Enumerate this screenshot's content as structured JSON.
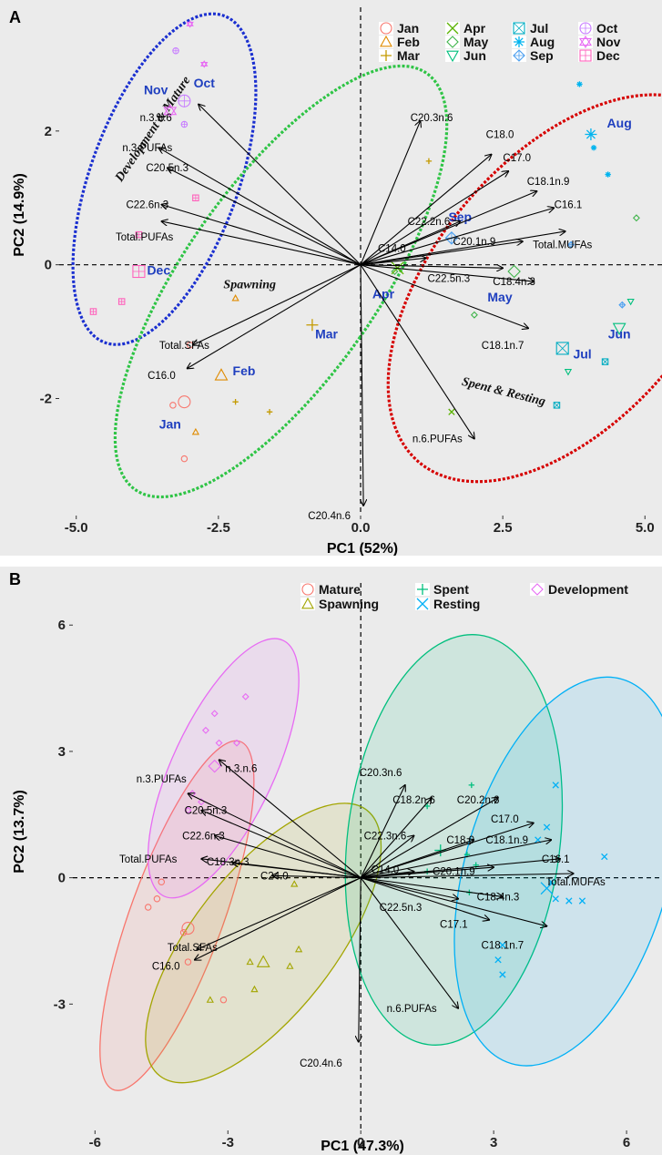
{
  "chart_data": [
    {
      "panel": "A",
      "type": "scatter",
      "xlabel": "PC1 (52%)",
      "ylabel": "PC2 (14.9%)",
      "xlim": [
        -5.3,
        5.3
      ],
      "ylim": [
        -3.75,
        3.85
      ],
      "xticks": [
        -5.0,
        -2.5,
        0.0,
        2.5,
        5.0
      ],
      "xtick_labels": [
        "-5.0",
        "-2.5",
        "0.0",
        "2.5",
        "5.0"
      ],
      "yticks": [
        -2,
        0,
        2
      ],
      "ytick_labels": [
        "-2",
        "0",
        "2"
      ],
      "grid": false,
      "background": "#ebebeb",
      "legend_position": "top-right",
      "legend": [
        {
          "name": "Jan",
          "color": "#f8766d"
        },
        {
          "name": "Feb",
          "color": "#e08b00"
        },
        {
          "name": "Mar",
          "color": "#c49a00"
        },
        {
          "name": "Apr",
          "color": "#5bb300"
        },
        {
          "name": "May",
          "color": "#3fb44a"
        },
        {
          "name": "Jun",
          "color": "#00bf7d"
        },
        {
          "name": "Jul",
          "color": "#00acc1"
        },
        {
          "name": "Aug",
          "color": "#00b4ef"
        },
        {
          "name": "Sep",
          "color": "#4b9ff0"
        },
        {
          "name": "Oct",
          "color": "#c77cff"
        },
        {
          "name": "Nov",
          "color": "#e76bf3"
        },
        {
          "name": "Dec",
          "color": "#ff62bc"
        }
      ],
      "points": [
        {
          "month": "Jan",
          "x": -3.0,
          "y": -1.2
        },
        {
          "month": "Jan",
          "x": -3.3,
          "y": -2.1
        },
        {
          "month": "Jan",
          "x": -3.1,
          "y": -2.9
        },
        {
          "month": "Feb",
          "x": -2.2,
          "y": -0.5
        },
        {
          "month": "Feb",
          "x": -2.9,
          "y": -2.5
        },
        {
          "month": "Mar",
          "x": -2.2,
          "y": -2.05
        },
        {
          "month": "Mar",
          "x": -1.6,
          "y": -2.2
        },
        {
          "month": "Mar",
          "x": 1.2,
          "y": 1.55
        },
        {
          "month": "Apr",
          "x": 1.6,
          "y": -2.2
        },
        {
          "month": "May",
          "x": 0.6,
          "y": -0.1
        },
        {
          "month": "May",
          "x": 2.0,
          "y": -0.75
        },
        {
          "month": "May",
          "x": 4.85,
          "y": 0.7
        },
        {
          "month": "Jun",
          "x": 3.65,
          "y": -1.6
        },
        {
          "month": "Jun",
          "x": 4.75,
          "y": -0.55
        },
        {
          "month": "Jul",
          "x": 3.45,
          "y": -2.1
        },
        {
          "month": "Jul",
          "x": 4.3,
          "y": -1.45
        },
        {
          "month": "Aug",
          "x": 3.85,
          "y": 2.7
        },
        {
          "month": "Aug",
          "x": 4.1,
          "y": 1.75
        },
        {
          "month": "Aug",
          "x": 4.35,
          "y": 1.35
        },
        {
          "month": "Sep",
          "x": 4.6,
          "y": -0.6
        },
        {
          "month": "Sep",
          "x": 3.7,
          "y": 0.3
        },
        {
          "month": "Oct",
          "x": -3.25,
          "y": 3.2
        },
        {
          "month": "Oct",
          "x": -3.1,
          "y": 2.1
        },
        {
          "month": "Nov",
          "x": -3.0,
          "y": 3.6
        },
        {
          "month": "Nov",
          "x": -2.75,
          "y": 3.0
        },
        {
          "month": "Dec",
          "x": -2.9,
          "y": 1.0
        },
        {
          "month": "Dec",
          "x": -3.9,
          "y": 0.45
        },
        {
          "month": "Dec",
          "x": -4.2,
          "y": -0.55
        },
        {
          "month": "Dec",
          "x": -4.7,
          "y": -0.7
        }
      ],
      "centroids": [
        {
          "month": "Jan",
          "x": -3.1,
          "y": -2.05
        },
        {
          "month": "Feb",
          "x": -2.45,
          "y": -1.65
        },
        {
          "month": "Mar",
          "x": -0.85,
          "y": -0.9
        },
        {
          "month": "Apr",
          "x": 0.65,
          "y": -0.05
        },
        {
          "month": "May",
          "x": 2.7,
          "y": -0.1
        },
        {
          "month": "Jun",
          "x": 4.55,
          "y": -0.95
        },
        {
          "month": "Jul",
          "x": 3.55,
          "y": -1.25
        },
        {
          "month": "Aug",
          "x": 4.05,
          "y": 1.95
        },
        {
          "month": "Sep",
          "x": 1.6,
          "y": 0.4
        },
        {
          "month": "Oct",
          "x": -3.1,
          "y": 2.45
        },
        {
          "month": "Nov",
          "x": -3.35,
          "y": 2.3
        },
        {
          "month": "Dec",
          "x": -3.9,
          "y": -0.1
        }
      ],
      "centroid_labels": [
        {
          "text": "Jan",
          "x": -3.35,
          "y": -2.45
        },
        {
          "text": "Feb",
          "x": -2.05,
          "y": -1.65
        },
        {
          "text": "Mar",
          "x": -0.6,
          "y": -1.1
        },
        {
          "text": "Apr",
          "x": 0.4,
          "y": -0.5
        },
        {
          "text": "May",
          "x": 2.45,
          "y": -0.55
        },
        {
          "text": "Jun",
          "x": 4.55,
          "y": -1.1
        },
        {
          "text": "Jul",
          "x": 3.9,
          "y": -1.4
        },
        {
          "text": "Aug",
          "x": 4.55,
          "y": 2.05
        },
        {
          "text": "Sep",
          "x": 1.75,
          "y": 0.65
        },
        {
          "text": "Oct",
          "x": -2.75,
          "y": 2.65
        },
        {
          "text": "Nov",
          "x": -3.6,
          "y": 2.55
        },
        {
          "text": "Dec",
          "x": -3.55,
          "y": -0.15
        }
      ],
      "loadings": [
        {
          "name": "n.3.n.6",
          "x": -2.85,
          "y": 2.4,
          "lx": -3.6,
          "ly": 2.2
        },
        {
          "name": "n.3.PUFAs",
          "x": -3.55,
          "y": 1.75,
          "lx": -3.75,
          "ly": 1.75
        },
        {
          "name": "C20.5n.3",
          "x": -3.4,
          "y": 1.45,
          "lx": -3.4,
          "ly": 1.45
        },
        {
          "name": "C22.6n.3",
          "x": -3.5,
          "y": 0.9,
          "lx": -3.75,
          "ly": 0.9
        },
        {
          "name": "Total.PUFAs",
          "x": -3.5,
          "y": 0.65,
          "lx": -3.8,
          "ly": 0.42
        },
        {
          "name": "Total.SFAs",
          "x": -2.95,
          "y": -1.2,
          "lx": -3.1,
          "ly": -1.2
        },
        {
          "name": "C16.0",
          "x": -3.05,
          "y": -1.55,
          "lx": -3.5,
          "ly": -1.65
        },
        {
          "name": "C20.3n.6",
          "x": 1.05,
          "y": 2.15,
          "lx": 1.25,
          "ly": 2.2
        },
        {
          "name": "C18.0",
          "x": 2.3,
          "y": 1.65,
          "lx": 2.45,
          "ly": 1.95
        },
        {
          "name": "C17.0",
          "x": 2.6,
          "y": 1.4,
          "lx": 2.75,
          "ly": 1.6
        },
        {
          "name": "C18.1n.9",
          "x": 3.1,
          "y": 1.1,
          "lx": 3.3,
          "ly": 1.25
        },
        {
          "name": "C16.1",
          "x": 3.4,
          "y": 0.85,
          "lx": 3.65,
          "ly": 0.9
        },
        {
          "name": "C22.2n.6",
          "x": 1.75,
          "y": 0.65,
          "lx": 1.2,
          "ly": 0.65
        },
        {
          "name": "Total.MUFAs",
          "x": 3.6,
          "y": 0.5,
          "lx": 3.55,
          "ly": 0.3
        },
        {
          "name": "C20.1n.9",
          "x": 2.85,
          "y": 0.35,
          "lx": 2.0,
          "ly": 0.35
        },
        {
          "name": "C14.0",
          "x": 1.15,
          "y": 0.1,
          "lx": 0.55,
          "ly": 0.25
        },
        {
          "name": "C22.5n.3",
          "x": 2.5,
          "y": -0.05,
          "lx": 1.55,
          "ly": -0.2
        },
        {
          "name": "C18.4n.3",
          "x": 3.05,
          "y": -0.25,
          "lx": 2.7,
          "ly": -0.25
        },
        {
          "name": "C18.1n.7",
          "x": 2.95,
          "y": -0.95,
          "lx": 2.5,
          "ly": -1.2
        },
        {
          "name": "n.6.PUFAs",
          "x": 2.0,
          "y": -2.6,
          "lx": 1.35,
          "ly": -2.6
        },
        {
          "name": "C20.4n.6",
          "x": 0.05,
          "y": -3.6,
          "lx": -0.55,
          "ly": -3.75
        }
      ],
      "groups": [
        {
          "name": "Development & Mature",
          "color": "#1a2fd0",
          "cx": -3.45,
          "cy": 1.28,
          "rx": 1.3,
          "ry": 2.6,
          "angle_deg": 20,
          "label_x": -3.6,
          "label_y": 2.0,
          "label_angle": -56
        },
        {
          "name": "Spawning",
          "color": "#2ec445",
          "cx": -1.4,
          "cy": -0.25,
          "rx": 1.7,
          "ry": 3.8,
          "angle_deg": 35,
          "label_x": -1.95,
          "label_y": -0.35,
          "label_angle": 0
        },
        {
          "name": "Spent & Resting",
          "color": "#d60000",
          "cx": 3.6,
          "cy": -0.35,
          "rx": 2.3,
          "ry": 3.4,
          "angle_deg": 40,
          "label_x": 2.5,
          "label_y": -1.95,
          "label_angle": 14
        }
      ]
    },
    {
      "panel": "B",
      "type": "scatter",
      "xlabel": "PC1 (47.3%)",
      "ylabel": "PC2 (13.7%)",
      "xlim": [
        -6.5,
        6.8
      ],
      "ylim": [
        -6.0,
        7.0
      ],
      "xticks": [
        -6,
        -3,
        0,
        3,
        6
      ],
      "xtick_labels": [
        "-6",
        "-3",
        "0",
        "3",
        "6"
      ],
      "yticks": [
        -3,
        0,
        3,
        6
      ],
      "ytick_labels": [
        "-3",
        "0",
        "3",
        "6"
      ],
      "grid": false,
      "background": "#ebebeb",
      "legend_position": "top-right",
      "legend": [
        {
          "name": "Mature",
          "color": "#f8766d"
        },
        {
          "name": "Spawning",
          "color": "#a3a500"
        },
        {
          "name": "Spent",
          "color": "#00bf7d"
        },
        {
          "name": "Resting",
          "color": "#00b0f6"
        },
        {
          "name": "Development",
          "color": "#e76bf3"
        }
      ],
      "points": [
        {
          "group": "Mature",
          "x": -4.8,
          "y": -0.7
        },
        {
          "group": "Mature",
          "x": -4.6,
          "y": -0.5
        },
        {
          "group": "Mature",
          "x": -4.5,
          "y": -0.1
        },
        {
          "group": "Mature",
          "x": -4.0,
          "y": -1.3
        },
        {
          "group": "Mature",
          "x": -3.9,
          "y": -2.0
        },
        {
          "group": "Mature",
          "x": -3.1,
          "y": -2.9
        },
        {
          "group": "Spawning",
          "x": -2.5,
          "y": -2.0
        },
        {
          "group": "Spawning",
          "x": -2.4,
          "y": -2.65
        },
        {
          "group": "Spawning",
          "x": -1.6,
          "y": -2.1
        },
        {
          "group": "Spawning",
          "x": -1.4,
          "y": -1.7
        },
        {
          "group": "Spawning",
          "x": -1.5,
          "y": -0.15
        },
        {
          "group": "Spawning",
          "x": -3.4,
          "y": -2.9
        },
        {
          "group": "Spent",
          "x": 1.5,
          "y": 1.7
        },
        {
          "group": "Spent",
          "x": 2.4,
          "y": 0.55
        },
        {
          "group": "Spent",
          "x": 2.6,
          "y": 0.3
        },
        {
          "group": "Spent",
          "x": 2.45,
          "y": -0.35
        },
        {
          "group": "Spent",
          "x": 1.5,
          "y": 0.15
        },
        {
          "group": "Spent",
          "x": 2.5,
          "y": 2.2
        },
        {
          "group": "Resting",
          "x": 4.4,
          "y": 2.2
        },
        {
          "group": "Resting",
          "x": 4.2,
          "y": 1.2
        },
        {
          "group": "Resting",
          "x": 4.0,
          "y": 0.9
        },
        {
          "group": "Resting",
          "x": 5.5,
          "y": 0.5
        },
        {
          "group": "Resting",
          "x": 4.3,
          "y": -0.1
        },
        {
          "group": "Resting",
          "x": 4.4,
          "y": -0.5
        },
        {
          "group": "Resting",
          "x": 4.7,
          "y": -0.55
        },
        {
          "group": "Resting",
          "x": 5.0,
          "y": -0.55
        },
        {
          "group": "Resting",
          "x": 3.2,
          "y": -1.6
        },
        {
          "group": "Resting",
          "x": 3.2,
          "y": -2.3
        },
        {
          "group": "Resting",
          "x": 3.1,
          "y": -1.95
        },
        {
          "group": "Development",
          "x": -2.6,
          "y": 4.3
        },
        {
          "group": "Development",
          "x": -3.3,
          "y": 3.9
        },
        {
          "group": "Development",
          "x": -3.5,
          "y": 3.5
        },
        {
          "group": "Development",
          "x": -3.2,
          "y": 3.2
        },
        {
          "group": "Development",
          "x": -2.8,
          "y": 3.2
        },
        {
          "group": "Development",
          "x": -3.8,
          "y": 2.0
        },
        {
          "group": "Development",
          "x": -3.6,
          "y": 1.8
        },
        {
          "group": "Development",
          "x": -3.9,
          "y": 1.6
        }
      ],
      "centroids": [
        {
          "group": "Mature",
          "x": -3.9,
          "y": -1.2
        },
        {
          "group": "Spawning",
          "x": -2.2,
          "y": -2.0
        },
        {
          "group": "Spent",
          "x": 1.8,
          "y": 0.65
        },
        {
          "group": "Resting",
          "x": 4.2,
          "y": -0.25
        },
        {
          "group": "Development",
          "x": -3.3,
          "y": 2.65
        }
      ],
      "loadings": [
        {
          "name": "n.3.n.6",
          "x": -3.2,
          "y": 2.8,
          "lx": -2.7,
          "ly": 2.6
        },
        {
          "name": "n.3.PUFAs",
          "x": -3.9,
          "y": 2.0,
          "lx": -4.5,
          "ly": 2.35
        },
        {
          "name": "C20.5n.3",
          "x": -3.6,
          "y": 1.6,
          "lx": -3.5,
          "ly": 1.6
        },
        {
          "name": "C22.6n.3",
          "x": -3.3,
          "y": 1.0,
          "lx": -3.55,
          "ly": 1.0
        },
        {
          "name": "Total.PUFAs",
          "x": -3.6,
          "y": 0.45,
          "lx": -4.8,
          "ly": 0.45
        },
        {
          "name": "C18.3n.3",
          "x": -2.9,
          "y": 0.35,
          "lx": -3.0,
          "ly": 0.38
        },
        {
          "name": "C24.0",
          "x": -2.0,
          "y": 0.05,
          "lx": -1.95,
          "ly": 0.05
        },
        {
          "name": "Total.SFAs",
          "x": -3.7,
          "y": -1.7,
          "lx": -3.8,
          "ly": -1.65
        },
        {
          "name": "C16.0",
          "x": -3.75,
          "y": -1.95,
          "lx": -4.4,
          "ly": -2.1
        },
        {
          "name": "C20.3n.6",
          "x": 1.0,
          "y": 2.2,
          "lx": 0.45,
          "ly": 2.5
        },
        {
          "name": "C18.2n.6",
          "x": 1.6,
          "y": 1.9,
          "lx": 1.2,
          "ly": 1.85
        },
        {
          "name": "C20.2n.6",
          "x": 3.1,
          "y": 1.9,
          "lx": 2.65,
          "ly": 1.85
        },
        {
          "name": "C22.3n.6",
          "x": 1.2,
          "y": 1.0,
          "lx": 0.55,
          "ly": 1.0
        },
        {
          "name": "C18.0",
          "x": 2.55,
          "y": 0.9,
          "lx": 2.25,
          "ly": 0.9
        },
        {
          "name": "C17.0",
          "x": 3.9,
          "y": 1.3,
          "lx": 3.25,
          "ly": 1.4
        },
        {
          "name": "C18.1n.9",
          "x": 4.3,
          "y": 0.9,
          "lx": 3.3,
          "ly": 0.9
        },
        {
          "name": "C16.1",
          "x": 4.5,
          "y": 0.45,
          "lx": 4.4,
          "ly": 0.45
        },
        {
          "name": "C14.0",
          "x": 1.2,
          "y": 0.15,
          "lx": 0.55,
          "ly": 0.2
        },
        {
          "name": "C20.1n.9",
          "x": 3.0,
          "y": 0.25,
          "lx": 2.1,
          "ly": 0.15
        },
        {
          "name": "Total.MUFAs",
          "x": 4.8,
          "y": 0.1,
          "lx": 4.85,
          "ly": -0.1
        },
        {
          "name": "C18.4n.3",
          "x": 3.2,
          "y": -0.45,
          "lx": 3.1,
          "ly": -0.45
        },
        {
          "name": "C22.5n.3",
          "x": 2.2,
          "y": -0.5,
          "lx": 0.9,
          "ly": -0.7
        },
        {
          "name": "C17.1",
          "x": 2.9,
          "y": -1.0,
          "lx": 2.1,
          "ly": -1.1
        },
        {
          "name": "C18.1n.7",
          "x": 4.2,
          "y": -1.15,
          "lx": 3.2,
          "ly": -1.6
        },
        {
          "name": "n.6.PUFAs",
          "x": 2.2,
          "y": -3.1,
          "lx": 1.15,
          "ly": -3.1
        },
        {
          "name": "C20.4n.6",
          "x": -0.05,
          "y": -3.9,
          "lx": -0.9,
          "ly": -4.4
        }
      ],
      "groups": [
        {
          "name": "Mature",
          "color": "#f8766d",
          "fill": "#f8766d",
          "cx": -4.15,
          "cy": -0.9,
          "rx": 1.05,
          "ry": 4.4,
          "angle_deg": 20
        },
        {
          "name": "Spawning",
          "color": "#a3a500",
          "fill": "#a3a500",
          "cx": -2.2,
          "cy": -1.55,
          "rx": 1.6,
          "ry": 4.0,
          "angle_deg": 38
        },
        {
          "name": "Spent",
          "color": "#00bf7d",
          "fill": "#00bf7d",
          "cx": 2.1,
          "cy": 0.9,
          "rx": 2.4,
          "ry": 4.9,
          "angle_deg": 7
        },
        {
          "name": "Resting",
          "color": "#00b0f6",
          "fill": "#00b0f6",
          "cx": 4.65,
          "cy": 0.15,
          "rx": 2.3,
          "ry": 4.75,
          "angle_deg": 16
        },
        {
          "name": "Development",
          "color": "#e76bf3",
          "fill": "#e76bf3",
          "cx": -3.1,
          "cy": 2.6,
          "rx": 1.15,
          "ry": 3.35,
          "angle_deg": 25
        }
      ]
    }
  ],
  "panels": {
    "a": {
      "letter": "A",
      "xlabel": "PC1 (52%)",
      "ylabel": "PC2 (14.9%)"
    },
    "b": {
      "letter": "B",
      "xlabel": "PC1 (47.3%)",
      "ylabel": "PC2 (13.7%)"
    }
  }
}
